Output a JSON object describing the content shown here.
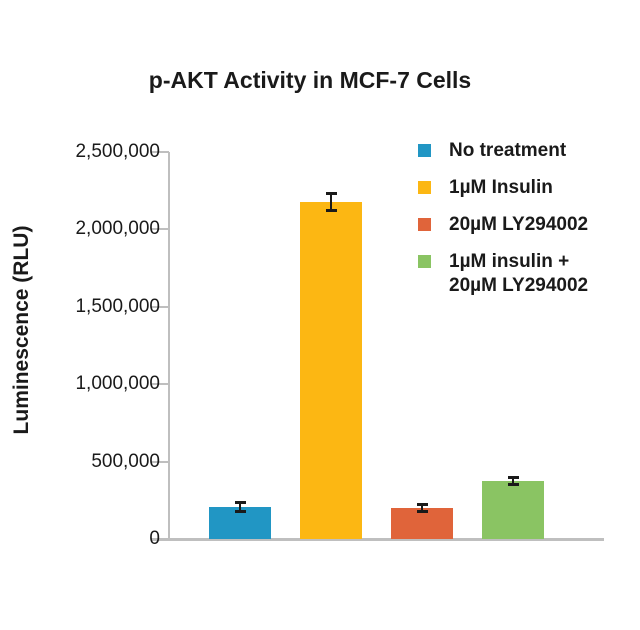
{
  "chart_data": {
    "type": "bar",
    "title": "p-AKT Activity in MCF-7 Cells",
    "xlabel": "",
    "ylabel": "Luminescence (RLU)",
    "ylim": [
      0,
      2500000
    ],
    "ytick_values": [
      0,
      500000,
      1000000,
      1500000,
      2000000,
      2500000
    ],
    "ytick_labels": [
      "0",
      "500,000",
      "1,000,000",
      "1,500,000",
      "2,000,000",
      "2,500,000"
    ],
    "grid": false,
    "legend_position": "upper-right",
    "categories": [
      "No treatment",
      "1µM Insulin",
      "20µM LY294002",
      "1µM insulin + 20µM LY294002"
    ],
    "series": [
      {
        "label": "No treatment",
        "legend_lines": [
          "No treatment"
        ],
        "value": 205000,
        "error": 28000,
        "color": "#2196c4"
      },
      {
        "label": "1µM Insulin",
        "legend_lines": [
          "1µM Insulin"
        ],
        "value": 2180000,
        "error": 55000,
        "color": "#fcb713"
      },
      {
        "label": "20µM LY294002",
        "legend_lines": [
          "20µM LY294002"
        ],
        "value": 200000,
        "error": 25000,
        "color": "#e0643a"
      },
      {
        "label": "1µM insulin + 20µM LY294002",
        "legend_lines": [
          "1µM insulin +",
          "20µM LY294002"
        ],
        "value": 375000,
        "error": 20000,
        "color": "#8ac463"
      }
    ],
    "colors": {
      "text": "#1a1a1a",
      "axis": "#bfbfbf",
      "error_bar": "#1a1a1a",
      "background": "#ffffff"
    }
  }
}
